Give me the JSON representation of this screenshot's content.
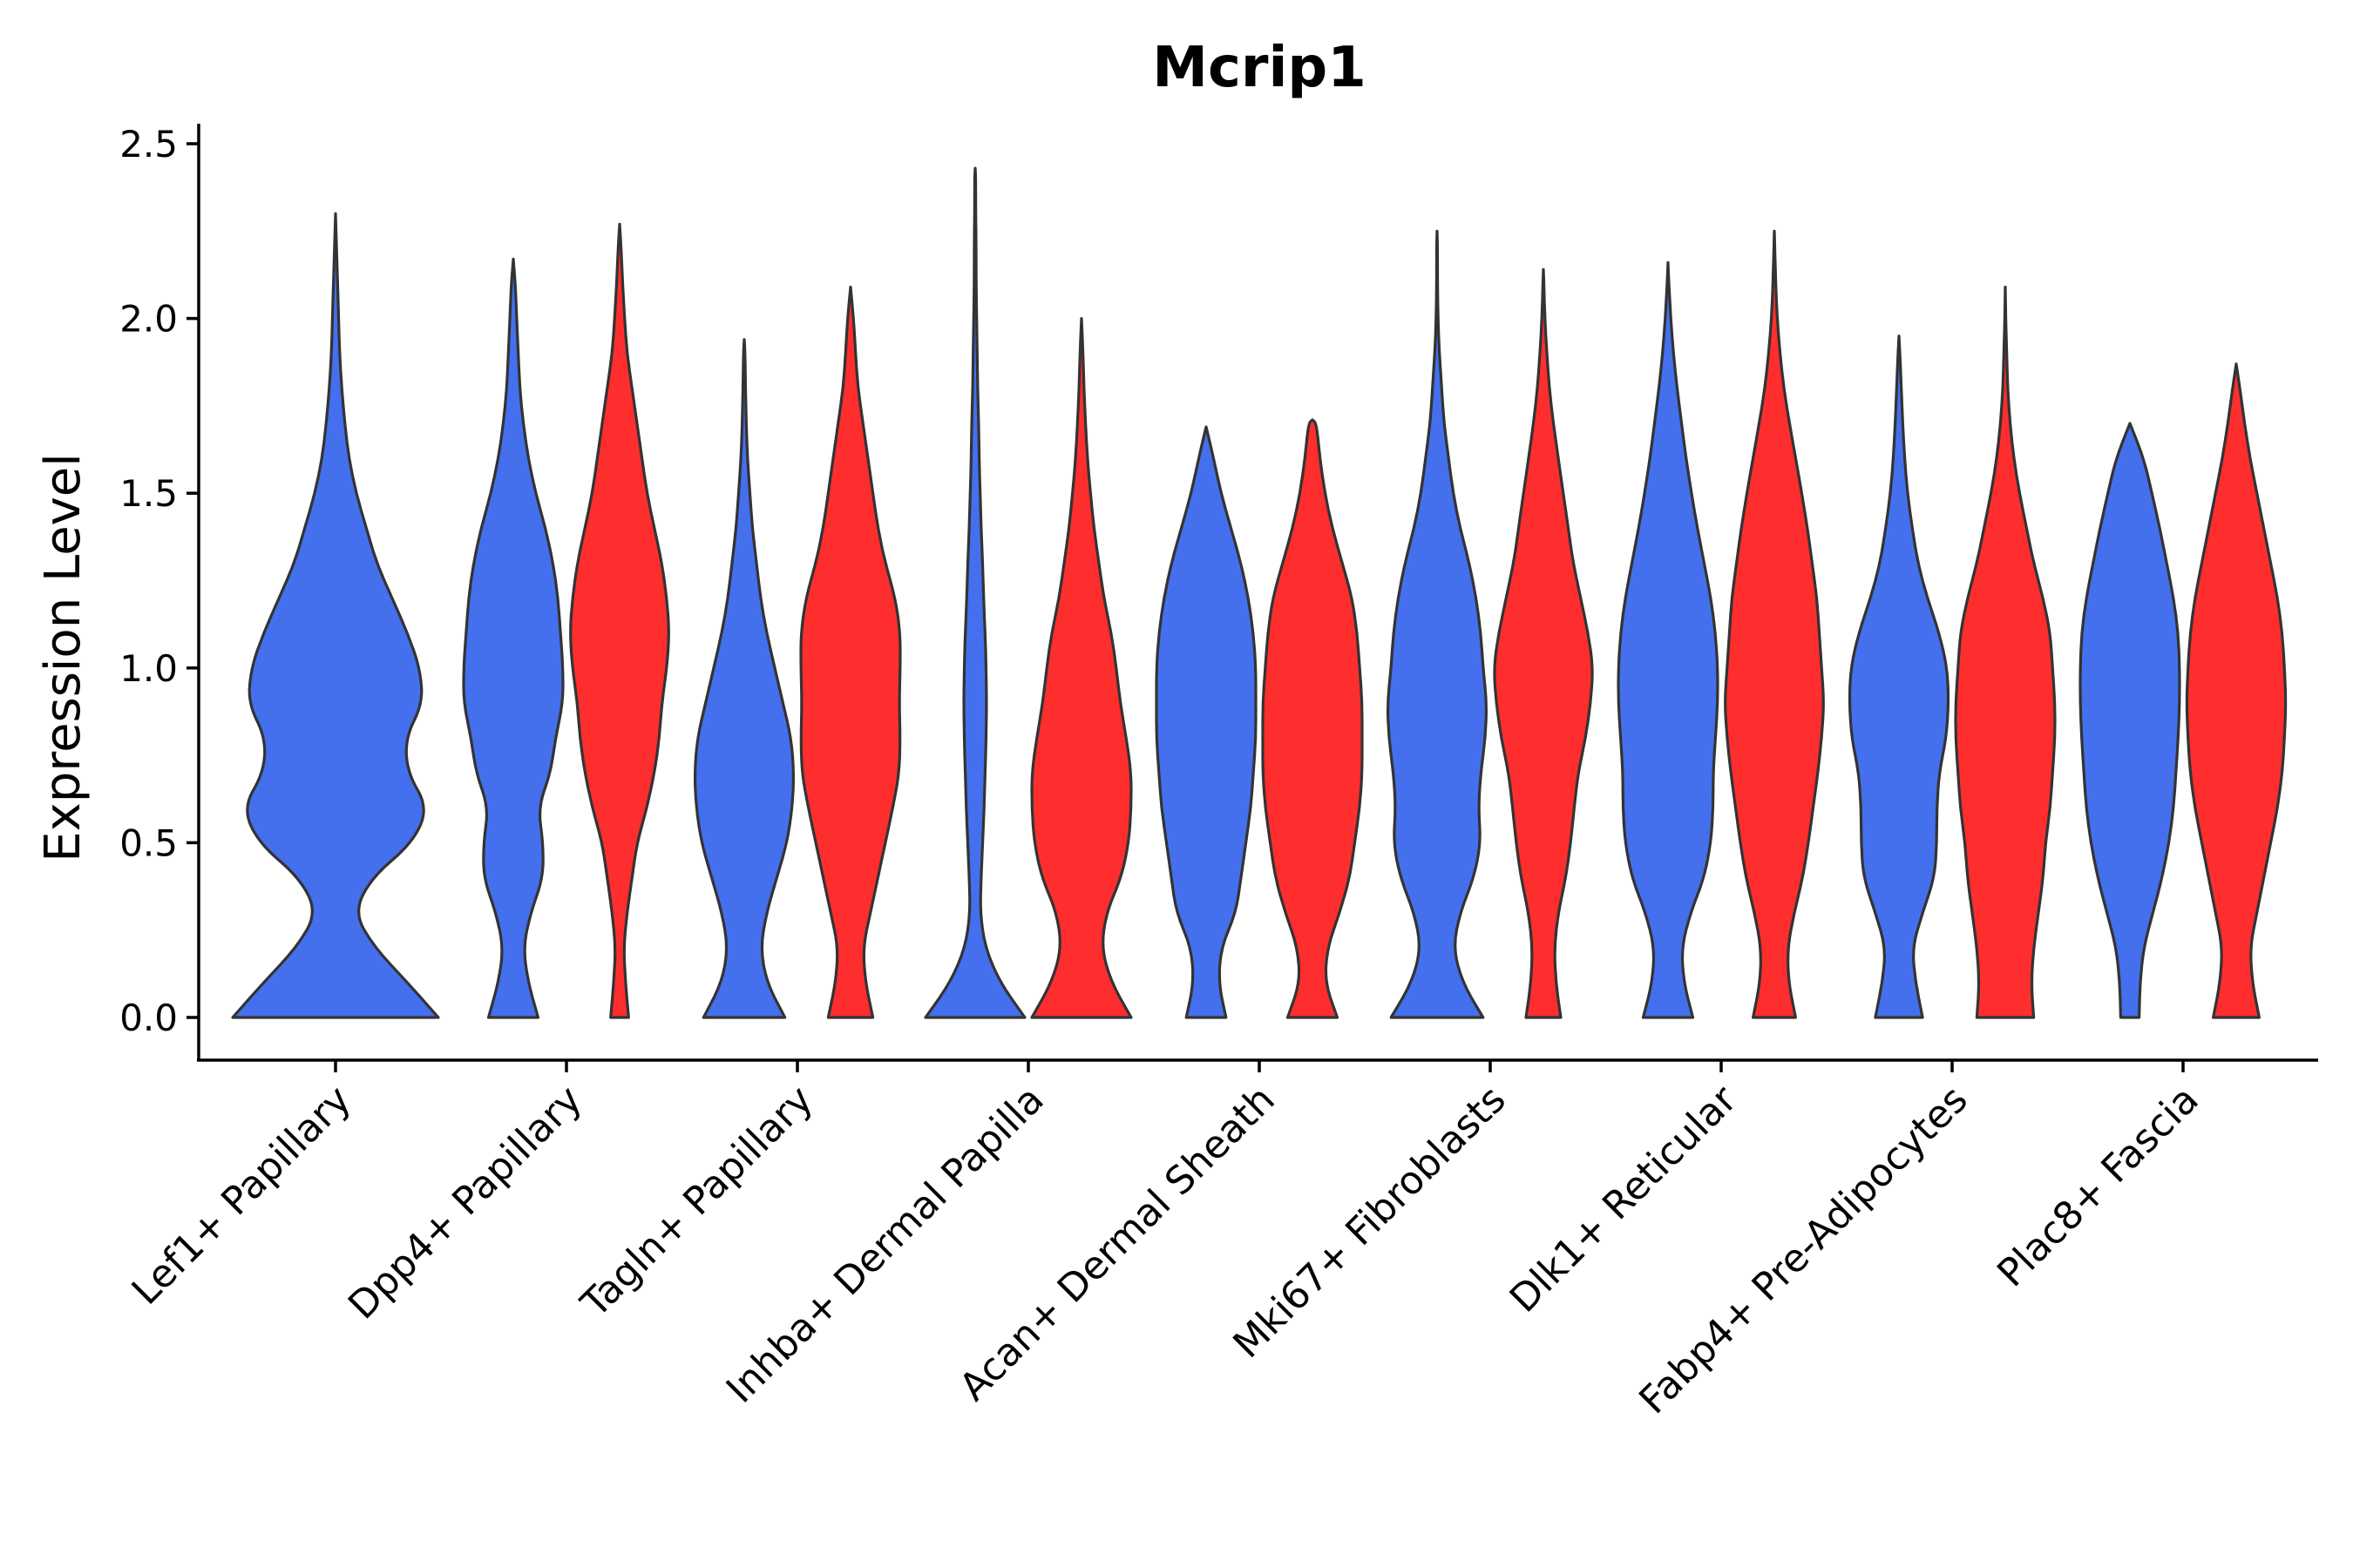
{
  "chart_data": {
    "type": "violin",
    "title": "Mcrip1",
    "ylabel": "Expression Level",
    "xlabel": "",
    "ylim": [
      -0.12,
      2.55
    ],
    "yticks": [
      "0.0",
      "0.5",
      "1.0",
      "1.5",
      "2.0",
      "2.5"
    ],
    "categories": [
      "Lef1+ Papillary",
      "Dpp4+ Papillary",
      "Tagln+ Papillary",
      "Inhba+ Dermal Papilla",
      "Acan+ Dermal Sheath",
      "Mki67+ Fibroblasts",
      "Dlk1+ Reticular",
      "Fabp4+ Pre-Adipocytes",
      "Plac8+ Fascia"
    ],
    "series_colors": [
      "#4470EE",
      "#FF2E2E"
    ],
    "y_grid": [
      0.0,
      0.1,
      0.2,
      0.3,
      0.4,
      0.5,
      0.6,
      0.7,
      0.8,
      0.9,
      1.0,
      1.1,
      1.2,
      1.3,
      1.4,
      1.5,
      1.6,
      1.7,
      1.8,
      1.9,
      2.0,
      2.1,
      2.2,
      2.3,
      2.4
    ],
    "violins": [
      {
        "category": 0,
        "series": 0,
        "max": 2.3,
        "density": [
          1.0,
          0.7,
          0.38,
          0.18,
          0.35,
          0.75,
          0.9,
          0.7,
          0.68,
          0.85,
          0.82,
          0.7,
          0.55,
          0.4,
          0.3,
          0.2,
          0.13,
          0.09,
          0.06,
          0.04,
          0.03,
          0.02,
          0.01,
          0.01,
          0.01
        ]
      },
      {
        "category": 1,
        "series": 0,
        "max": 2.17,
        "density": [
          0.5,
          0.3,
          0.2,
          0.35,
          0.6,
          0.6,
          0.5,
          0.75,
          0.85,
          1.0,
          1.0,
          0.95,
          0.9,
          0.8,
          0.65,
          0.45,
          0.3,
          0.2,
          0.13,
          0.1,
          0.07,
          0.04,
          0.01,
          0,
          0
        ]
      },
      {
        "category": 1,
        "series": 1,
        "max": 2.27,
        "density": [
          0.18,
          0.12,
          0.08,
          0.15,
          0.25,
          0.35,
          0.55,
          0.7,
          0.8,
          0.85,
          0.95,
          1.0,
          0.95,
          0.85,
          0.7,
          0.55,
          0.45,
          0.35,
          0.25,
          0.15,
          0.1,
          0.06,
          0.03,
          0.01,
          0
        ]
      },
      {
        "category": 2,
        "series": 0,
        "max": 1.94,
        "density": [
          1.0,
          0.55,
          0.4,
          0.55,
          0.8,
          1.05,
          1.18,
          1.22,
          1.15,
          0.95,
          0.75,
          0.55,
          0.4,
          0.3,
          0.2,
          0.14,
          0.08,
          0.05,
          0.03,
          0.02,
          0.01,
          0,
          0,
          0,
          0
        ]
      },
      {
        "category": 2,
        "series": 1,
        "max": 2.09,
        "density": [
          0.45,
          0.3,
          0.25,
          0.4,
          0.55,
          0.7,
          0.85,
          0.98,
          1.0,
          0.98,
          1.0,
          1.0,
          0.9,
          0.7,
          0.55,
          0.45,
          0.35,
          0.25,
          0.15,
          0.1,
          0.06,
          0.03,
          0.01,
          0,
          0
        ]
      },
      {
        "category": 3,
        "series": 0,
        "max": 2.43,
        "density": [
          1.0,
          0.5,
          0.2,
          0.1,
          0.12,
          0.15,
          0.18,
          0.2,
          0.22,
          0.23,
          0.22,
          0.2,
          0.17,
          0.15,
          0.12,
          0.1,
          0.08,
          0.07,
          0.05,
          0.04,
          0.03,
          0.02,
          0.02,
          0.01,
          0.01
        ]
      },
      {
        "category": 3,
        "series": 1,
        "max": 2.0,
        "density": [
          1.0,
          0.6,
          0.4,
          0.5,
          0.8,
          0.95,
          1.0,
          1.0,
          0.9,
          0.78,
          0.7,
          0.6,
          0.45,
          0.35,
          0.25,
          0.18,
          0.12,
          0.08,
          0.05,
          0.03,
          0.01,
          0,
          0,
          0,
          0
        ]
      },
      {
        "category": 4,
        "series": 0,
        "max": 1.69,
        "density": [
          0.4,
          0.25,
          0.3,
          0.6,
          0.7,
          0.8,
          0.9,
          0.95,
          1.0,
          1.0,
          1.0,
          0.95,
          0.85,
          0.7,
          0.5,
          0.3,
          0.15,
          0.05,
          0,
          0,
          0,
          0,
          0,
          0,
          0
        ]
      },
      {
        "category": 4,
        "series": 1,
        "max": 1.71,
        "density": [
          0.5,
          0.25,
          0.3,
          0.55,
          0.75,
          0.85,
          0.95,
          1.0,
          1.0,
          1.0,
          0.95,
          0.9,
          0.8,
          0.6,
          0.4,
          0.25,
          0.15,
          0.08,
          0,
          0,
          0,
          0,
          0,
          0,
          0
        ]
      },
      {
        "category": 5,
        "series": 0,
        "max": 2.25,
        "density": [
          1.0,
          0.55,
          0.35,
          0.5,
          0.8,
          0.95,
          0.9,
          0.95,
          1.05,
          1.08,
          1.0,
          0.95,
          0.85,
          0.7,
          0.5,
          0.35,
          0.25,
          0.15,
          0.1,
          0.05,
          0.02,
          0.01,
          0.01,
          0,
          0
        ]
      },
      {
        "category": 5,
        "series": 1,
        "max": 2.14,
        "density": [
          0.35,
          0.25,
          0.22,
          0.3,
          0.45,
          0.55,
          0.62,
          0.7,
          0.85,
          0.95,
          1.0,
          0.9,
          0.75,
          0.6,
          0.5,
          0.4,
          0.3,
          0.2,
          0.12,
          0.07,
          0.03,
          0.01,
          0,
          0,
          0
        ]
      },
      {
        "category": 6,
        "series": 0,
        "max": 2.16,
        "density": [
          0.55,
          0.35,
          0.3,
          0.5,
          0.8,
          0.95,
          1.0,
          1.0,
          1.05,
          1.1,
          1.1,
          1.05,
          0.95,
          0.8,
          0.65,
          0.52,
          0.4,
          0.3,
          0.2,
          0.12,
          0.06,
          0.02,
          0.01,
          0,
          0
        ]
      },
      {
        "category": 6,
        "series": 1,
        "max": 2.25,
        "density": [
          0.45,
          0.3,
          0.28,
          0.42,
          0.6,
          0.72,
          0.82,
          0.92,
          1.0,
          1.05,
          1.0,
          0.95,
          0.9,
          0.8,
          0.7,
          0.58,
          0.45,
          0.32,
          0.2,
          0.12,
          0.06,
          0.03,
          0.01,
          0,
          0
        ]
      },
      {
        "category": 7,
        "series": 0,
        "max": 1.95,
        "density": [
          0.5,
          0.35,
          0.28,
          0.5,
          0.75,
          0.8,
          0.8,
          0.85,
          1.0,
          1.05,
          1.02,
          0.85,
          0.6,
          0.4,
          0.28,
          0.18,
          0.12,
          0.08,
          0.05,
          0.02,
          0.01,
          0,
          0,
          0,
          0
        ]
      },
      {
        "category": 7,
        "series": 1,
        "max": 2.09,
        "density": [
          0.6,
          0.55,
          0.6,
          0.7,
          0.8,
          0.85,
          0.95,
          1.0,
          1.05,
          1.05,
          1.0,
          0.95,
          0.8,
          0.6,
          0.45,
          0.3,
          0.18,
          0.1,
          0.05,
          0.03,
          0.01,
          0,
          0,
          0,
          0
        ]
      },
      {
        "category": 8,
        "series": 0,
        "max": 1.7,
        "density": [
          0.2,
          0.22,
          0.3,
          0.5,
          0.7,
          0.85,
          0.95,
          1.0,
          1.05,
          1.08,
          1.08,
          1.05,
          0.95,
          0.8,
          0.65,
          0.48,
          0.3,
          0.05,
          0,
          0,
          0,
          0,
          0,
          0,
          0
        ]
      },
      {
        "category": 8,
        "series": 1,
        "max": 1.87,
        "density": [
          0.5,
          0.35,
          0.3,
          0.45,
          0.6,
          0.75,
          0.9,
          1.0,
          1.05,
          1.08,
          1.05,
          1.0,
          0.9,
          0.75,
          0.6,
          0.45,
          0.3,
          0.18,
          0.08,
          0.02,
          0,
          0,
          0,
          0,
          0
        ]
      }
    ]
  }
}
